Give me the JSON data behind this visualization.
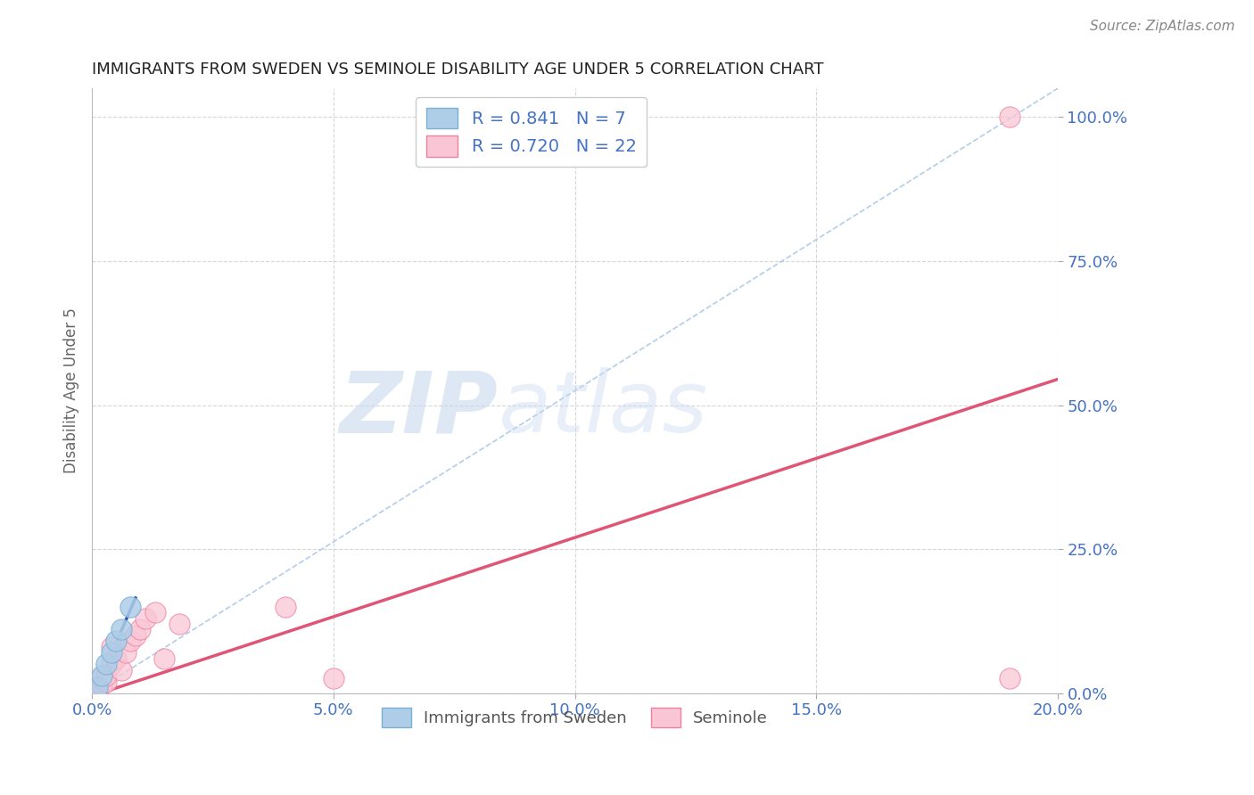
{
  "title": "IMMIGRANTS FROM SWEDEN VS SEMINOLE DISABILITY AGE UNDER 5 CORRELATION CHART",
  "source_text": "Source: ZipAtlas.com",
  "ylabel": "Disability Age Under 5",
  "xlim": [
    0.0,
    0.2
  ],
  "ylim": [
    0.0,
    1.05
  ],
  "xtick_values": [
    0.0,
    0.05,
    0.1,
    0.15,
    0.2
  ],
  "ytick_values": [
    0.0,
    0.25,
    0.5,
    0.75,
    1.0
  ],
  "legend1_label": "Immigrants from Sweden",
  "legend1_r": "0.841",
  "legend1_n": "7",
  "legend2_label": "Seminole",
  "legend2_r": "0.720",
  "legend2_n": "22",
  "blue_fill_color": "#aecde8",
  "blue_edge_color": "#7bafd4",
  "pink_fill_color": "#f9c6d5",
  "pink_edge_color": "#f080a0",
  "blue_line_color": "#2255aa",
  "pink_line_color": "#e05575",
  "dash_line_color": "#aac8e8",
  "legend_text_color": "#4472c4",
  "axis_tick_color": "#4472c4",
  "ylabel_color": "#666666",
  "title_color": "#222222",
  "source_color": "#888888",
  "grid_color": "#cccccc",
  "background_color": "#ffffff",
  "sweden_x": [
    0.001,
    0.002,
    0.003,
    0.004,
    0.005,
    0.006,
    0.008
  ],
  "sweden_y": [
    0.01,
    0.03,
    0.05,
    0.07,
    0.09,
    0.11,
    0.15
  ],
  "seminole_x": [
    0.001,
    0.001,
    0.002,
    0.002,
    0.003,
    0.003,
    0.004,
    0.004,
    0.005,
    0.006,
    0.007,
    0.008,
    0.009,
    0.01,
    0.011,
    0.013,
    0.015,
    0.018,
    0.04,
    0.05,
    0.19,
    0.19
  ],
  "seminole_y": [
    0.01,
    0.005,
    0.015,
    0.025,
    0.02,
    0.03,
    0.05,
    0.08,
    0.06,
    0.04,
    0.07,
    0.09,
    0.1,
    0.11,
    0.13,
    0.14,
    0.06,
    0.12,
    0.15,
    0.025,
    0.025,
    1.0
  ],
  "sweden_line_x0": 0.0,
  "sweden_line_y0": -0.01,
  "sweden_line_x1": 0.009,
  "sweden_line_y1": 0.165,
  "seminole_line_x0": 0.0,
  "seminole_line_y0": -0.005,
  "seminole_line_x1": 0.2,
  "seminole_line_y1": 0.545,
  "dash_line_x0": 0.0,
  "dash_line_y0": 0.0,
  "dash_line_x1": 0.2,
  "dash_line_y1": 1.05
}
